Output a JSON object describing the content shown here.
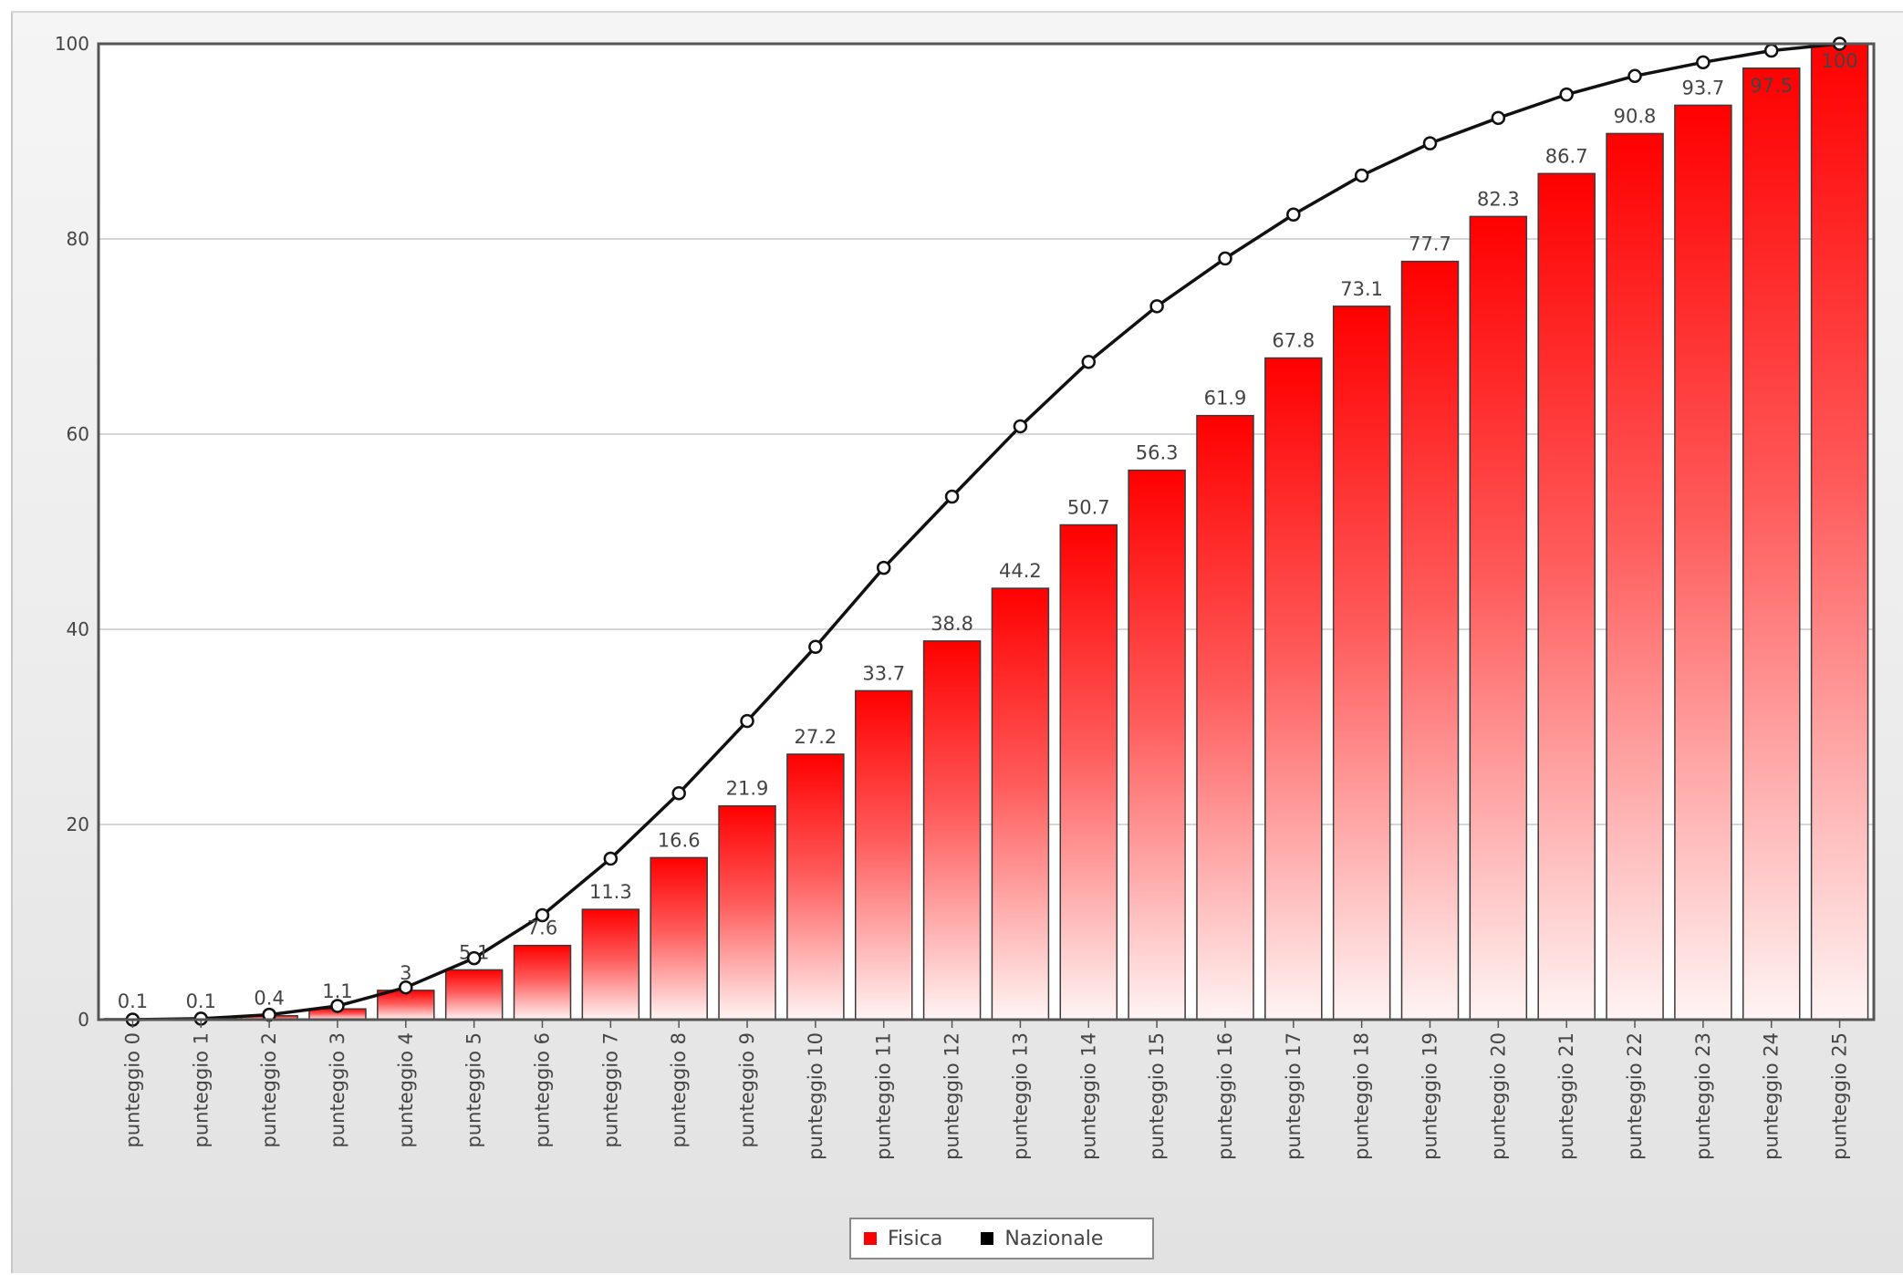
{
  "colors": {
    "bar_top": "#ff0000",
    "bar_bottom": "#fff4f4",
    "bar_stroke": "#3a3a3a",
    "line": "#111111",
    "marker_fill": "#ffffff",
    "grid": "#c8c8c8",
    "axis": "#555555",
    "text": "#444444"
  },
  "legend": {
    "items": [
      {
        "label": "Fisica",
        "color": "#ff0000"
      },
      {
        "label": "Nazionale",
        "color": "#000000"
      }
    ]
  },
  "chart_data": {
    "type": "bar",
    "title": "",
    "xlabel": "",
    "ylabel": "",
    "ylim": [
      0,
      100
    ],
    "yticks": [
      0,
      20,
      40,
      60,
      80,
      100
    ],
    "grid": true,
    "legend_position": "bottom-center",
    "categories": [
      "punteggio 0",
      "punteggio 1",
      "punteggio 2",
      "punteggio 3",
      "punteggio 4",
      "punteggio 5",
      "punteggio 6",
      "punteggio 7",
      "punteggio 8",
      "punteggio 9",
      "punteggio 10",
      "punteggio 11",
      "punteggio 12",
      "punteggio 13",
      "punteggio 14",
      "punteggio 15",
      "punteggio 16",
      "punteggio 17",
      "punteggio 18",
      "punteggio 19",
      "punteggio 20",
      "punteggio 21",
      "punteggio 22",
      "punteggio 23",
      "punteggio 24",
      "punteggio 25"
    ],
    "series": [
      {
        "name": "Fisica",
        "type": "bar",
        "values": [
          0.1,
          0.1,
          0.4,
          1.1,
          3,
          5.1,
          7.6,
          11.3,
          16.6,
          21.9,
          27.2,
          33.7,
          38.8,
          44.2,
          50.7,
          56.3,
          61.9,
          67.8,
          73.1,
          77.7,
          82.3,
          86.7,
          90.8,
          93.7,
          97.5,
          100
        ],
        "labels": [
          "0.1",
          "0.1",
          "0.4",
          "1.1",
          "3",
          "5.1",
          "7.6",
          "11.3",
          "16.6",
          "21.9",
          "27.2",
          "33.7",
          "38.8",
          "44.2",
          "50.7",
          "56.3",
          "61.9",
          "67.8",
          "73.1",
          "77.7",
          "82.3",
          "86.7",
          "90.8",
          "93.7",
          "97.5",
          "100"
        ]
      },
      {
        "name": "Nazionale",
        "type": "line",
        "values": [
          0,
          0.1,
          0.5,
          1.4,
          3.3,
          6.3,
          10.7,
          16.5,
          23.2,
          30.6,
          38.2,
          46.3,
          53.6,
          60.8,
          67.4,
          73.1,
          78.0,
          82.5,
          86.5,
          89.8,
          92.4,
          94.8,
          96.7,
          98.1,
          99.3,
          100
        ]
      }
    ]
  }
}
